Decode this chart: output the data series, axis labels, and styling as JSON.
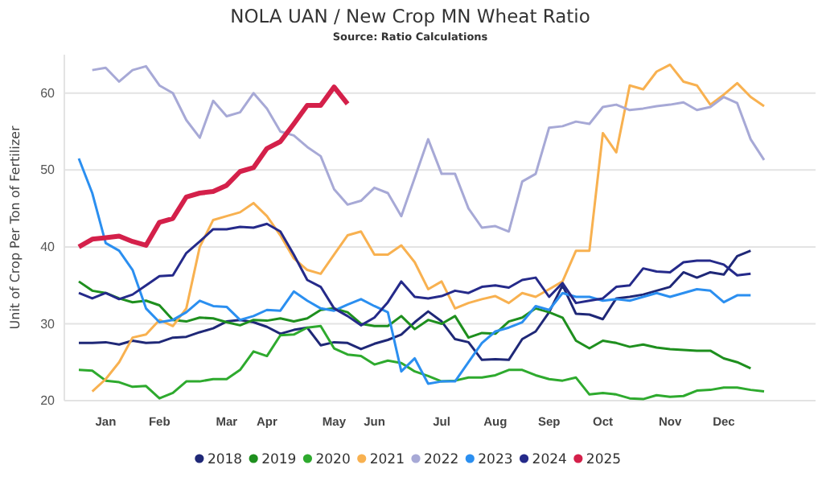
{
  "chart_data": {
    "type": "line",
    "title": "NOLA UAN / New Crop MN Wheat Ratio",
    "subtitle": "Source: Ratio Calculations",
    "ylabel": "Unit of Crop Per Ton of Fertilizer",
    "categories": [
      null,
      null,
      "Jan",
      null,
      null,
      null,
      "Feb",
      null,
      null,
      null,
      null,
      "Mar",
      null,
      null,
      "Apr",
      null,
      null,
      null,
      null,
      "May",
      null,
      null,
      "Jun",
      null,
      null,
      null,
      null,
      "Jul",
      null,
      null,
      null,
      "Aug",
      null,
      null,
      null,
      "Sep",
      null,
      null,
      null,
      "Oct",
      null,
      null,
      null,
      null,
      "Nov",
      null,
      null,
      null,
      "Dec",
      null,
      null,
      null
    ],
    "ylim": [
      20,
      65
    ],
    "yticks": [
      20,
      30,
      40,
      50,
      60
    ],
    "grid": "y",
    "legend": "bottom",
    "marker": "none",
    "line_style": "solid",
    "series": [
      {
        "name": "2018",
        "color": "#1f2877",
        "values": [
          27.5,
          27.5,
          27.6,
          27.3,
          27.8,
          27.5,
          27.6,
          28.2,
          28.3,
          28.9,
          29.4,
          30.3,
          30.5,
          30.2,
          29.6,
          28.7,
          29.2,
          29.5,
          27.2,
          27.6,
          27.5,
          26.7,
          27.4,
          27.9,
          28.6,
          30.2,
          31.6,
          30.3,
          28,
          27.6,
          25.3,
          25.4,
          25.3,
          28,
          29,
          31.5,
          35,
          31.3,
          31.2,
          30.6,
          33.3,
          33.5,
          33.8,
          34.3,
          34.8,
          36.7,
          36,
          36.7,
          36.4,
          38.8,
          39.5,
          null
        ]
      },
      {
        "name": "2019",
        "color": "#1e8f1e",
        "values": [
          35.5,
          34.3,
          34,
          33.3,
          32.8,
          33,
          32.4,
          30.5,
          30.3,
          30.8,
          30.7,
          30.2,
          29.8,
          30.5,
          30.4,
          30.7,
          30.3,
          30.7,
          31.8,
          32,
          31.5,
          30,
          29.7,
          29.7,
          31,
          29.3,
          30.5,
          30,
          31,
          28.2,
          28.8,
          28.7,
          30.3,
          30.8,
          32,
          31.5,
          30.8,
          27.8,
          26.8,
          27.8,
          27.5,
          27,
          27.3,
          26.9,
          26.7,
          26.6,
          26.5,
          26.5,
          25.5,
          25,
          24.2,
          null
        ]
      },
      {
        "name": "2020",
        "color": "#2eaa2e",
        "values": [
          24,
          23.9,
          22.6,
          22.4,
          21.8,
          21.9,
          20.3,
          21,
          22.5,
          22.5,
          22.8,
          22.8,
          24,
          26.4,
          25.8,
          28.5,
          28.6,
          29.5,
          29.7,
          26.8,
          26,
          25.8,
          24.7,
          25.2,
          24.9,
          23.8,
          23.2,
          22.5,
          22.6,
          23,
          23,
          23.3,
          24,
          24,
          23.3,
          22.8,
          22.6,
          23,
          20.8,
          21,
          20.8,
          20.3,
          20.2,
          20.7,
          20.5,
          20.6,
          21.3,
          21.4,
          21.7,
          21.7,
          21.4,
          21.2
        ]
      },
      {
        "name": "2021",
        "color": "#f8b150",
        "values": [
          null,
          21.2,
          22.8,
          25,
          28.2,
          28.6,
          30.5,
          29.7,
          32,
          40,
          43.5,
          44,
          44.5,
          45.7,
          44,
          41.5,
          38.5,
          37,
          36.5,
          39,
          41.5,
          42,
          39,
          39,
          40.2,
          38,
          34.5,
          35.5,
          32,
          32.7,
          33.2,
          33.6,
          32.7,
          34,
          33.5,
          34.5,
          35.5,
          39.5,
          39.5,
          54.8,
          52.3,
          61,
          60.5,
          62.8,
          63.7,
          61.5,
          61,
          58.5,
          59.8,
          61.3,
          59.5,
          58.3
        ]
      },
      {
        "name": "2022",
        "color": "#a7a9d6",
        "values": [
          null,
          63,
          63.3,
          61.5,
          63,
          63.5,
          61,
          60,
          56.5,
          54.2,
          59,
          57,
          57.5,
          60,
          58,
          55,
          54.5,
          53,
          51.8,
          47.5,
          45.5,
          46,
          47.7,
          47,
          44,
          49,
          54,
          49.5,
          49.5,
          45,
          42.5,
          42.7,
          42,
          48.5,
          49.5,
          55.5,
          55.7,
          56.3,
          56,
          58.2,
          58.5,
          57.8,
          58,
          58.3,
          58.5,
          58.8,
          57.8,
          58.2,
          59.5,
          58.7,
          54,
          51.3
        ]
      },
      {
        "name": "2023",
        "color": "#2b8ff0",
        "values": [
          51.5,
          47,
          40.5,
          39.5,
          37,
          32,
          30.2,
          30.5,
          31.5,
          33,
          32.3,
          32.2,
          30.5,
          31,
          31.8,
          31.7,
          34.2,
          33,
          32,
          31.7,
          32.5,
          33.2,
          32.3,
          31.5,
          23.8,
          25.5,
          22.2,
          22.5,
          22.5,
          25,
          27.5,
          29,
          29.5,
          30.2,
          32.3,
          31.8,
          34,
          33.5,
          33.5,
          33,
          33.2,
          33,
          33.5,
          34,
          33.5,
          34,
          34.5,
          34.3,
          32.8,
          33.7,
          33.7,
          null
        ]
      },
      {
        "name": "2024",
        "color": "#252a8a",
        "values": [
          34,
          33.3,
          34,
          33.2,
          33.8,
          35,
          36.2,
          36.3,
          39.2,
          40.7,
          42.3,
          42.3,
          42.6,
          42.5,
          43,
          42,
          39,
          35.7,
          34.8,
          32,
          31,
          29.8,
          30.8,
          32.8,
          35.5,
          33.5,
          33.3,
          33.6,
          34.3,
          34,
          34.8,
          35,
          34.7,
          35.7,
          36,
          33.5,
          35.3,
          32.7,
          33,
          33.3,
          34.8,
          35,
          37.2,
          36.8,
          36.7,
          38,
          38.2,
          38.2,
          37.7,
          36.3,
          36.5,
          null
        ]
      },
      {
        "name": "2025",
        "color": "#d4204a",
        "values": [
          40,
          41,
          41.2,
          41.4,
          40.7,
          40.2,
          43.2,
          43.7,
          46.5,
          47,
          47.2,
          48,
          49.8,
          50.3,
          52.8,
          53.7,
          56,
          58.4,
          58.4,
          60.8,
          58.6,
          null,
          null,
          null,
          null,
          null,
          null,
          null,
          null,
          null,
          null,
          null,
          null,
          null,
          null,
          null,
          null,
          null,
          null,
          null,
          null,
          null,
          null,
          null,
          null,
          null,
          null,
          null,
          null,
          null,
          null,
          null
        ]
      }
    ]
  }
}
